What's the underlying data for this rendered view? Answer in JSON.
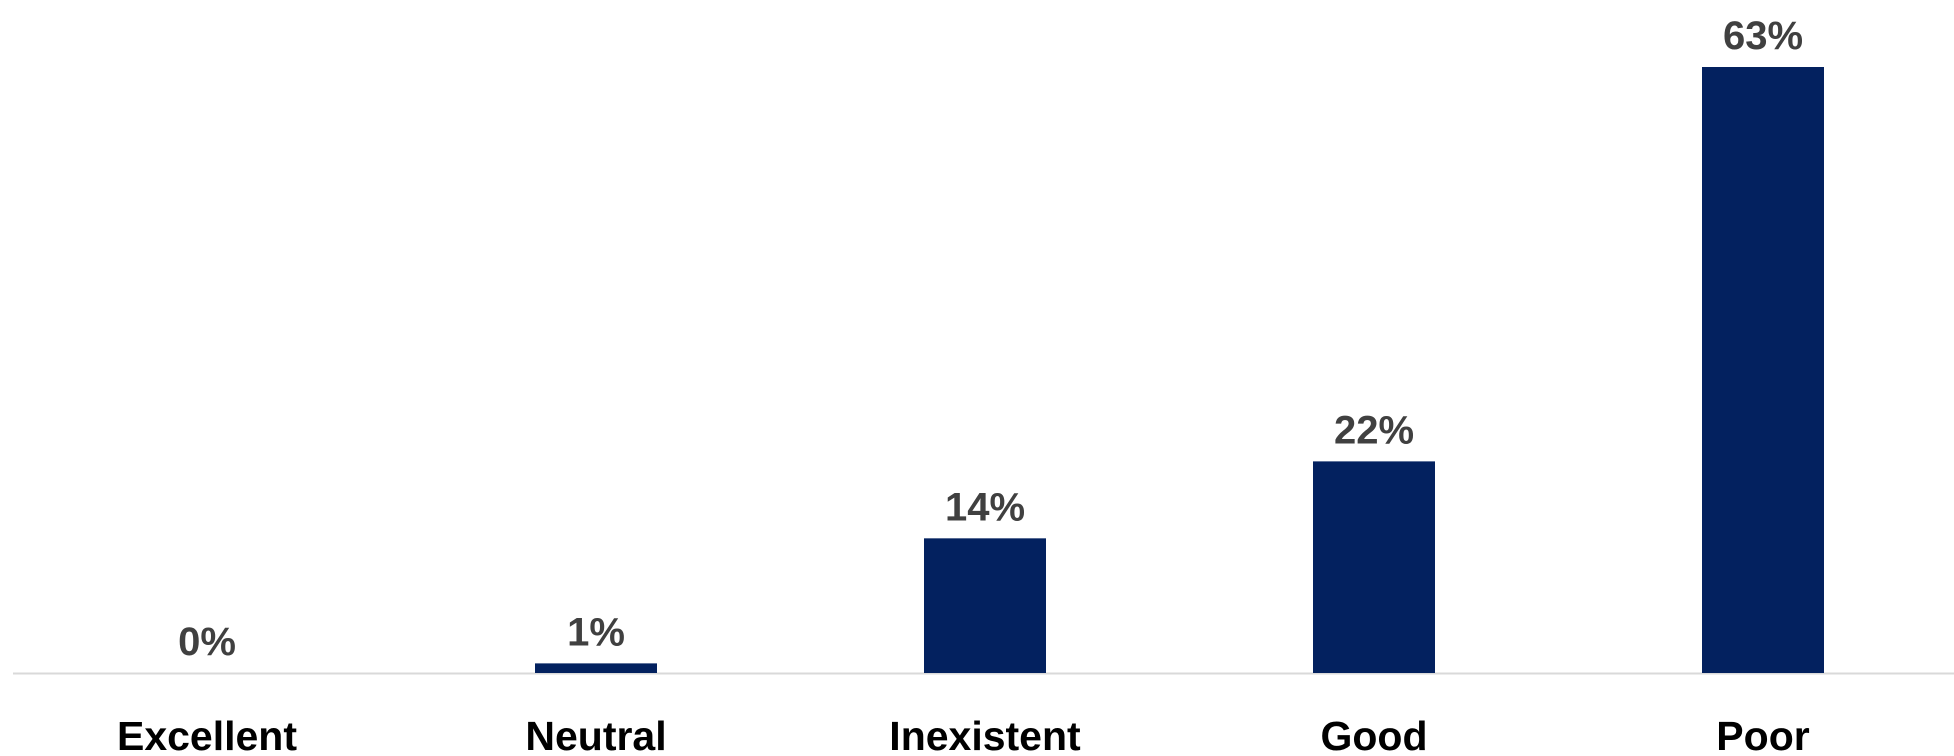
{
  "chart_data": {
    "type": "bar",
    "title": "",
    "xlabel": "",
    "ylabel": "",
    "categories": [
      "Excellent",
      "Neutral",
      "Inexistent",
      "Good",
      "Poor"
    ],
    "values": [
      0,
      1,
      14,
      22,
      63
    ],
    "data_labels": [
      "0%",
      "1%",
      "14%",
      "22%",
      "63%"
    ],
    "ylim": [
      0,
      63
    ],
    "grid": false,
    "legend": "none",
    "unit": "%",
    "colors": {
      "bar": "#03215F",
      "data_label": "#404040",
      "category_label": "#000000",
      "baseline": "#D9D9D9"
    }
  }
}
